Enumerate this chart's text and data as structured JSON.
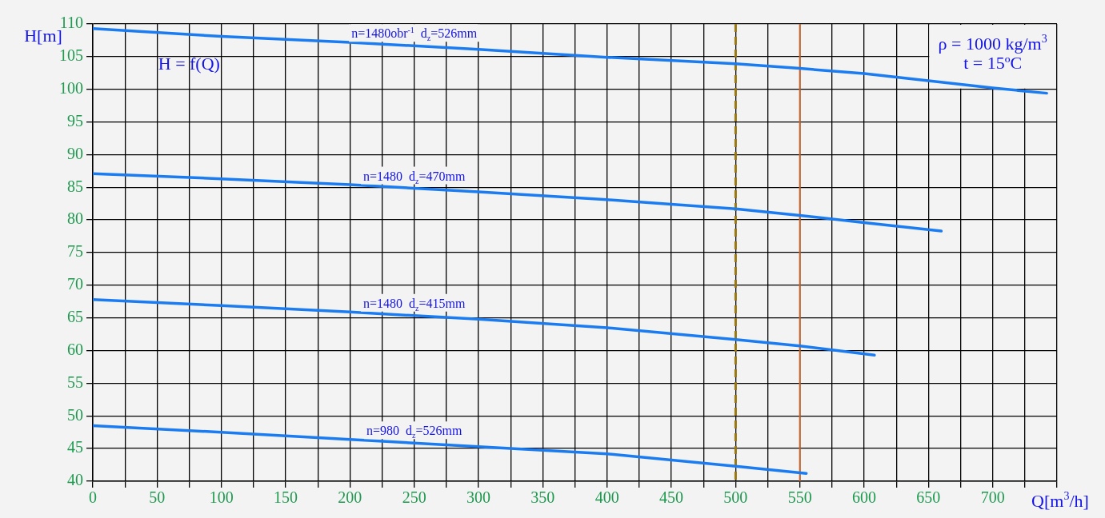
{
  "chart_data": {
    "type": "line",
    "xlabel": "Q[m$^{3}$/h]",
    "ylabel": "H[m]",
    "annotations": [
      "H = f(Q)",
      "ρ = 1000 kg/m$^{3}$",
      "t = 15ºC"
    ],
    "xlim": [
      0,
      750
    ],
    "ylim": [
      40,
      110
    ],
    "xticks": [
      0,
      {
        "value": 25,
        "label": null
      },
      50,
      {
        "value": 75,
        "label": null
      },
      100,
      {
        "value": 125,
        "label": null
      },
      150,
      {
        "value": 175,
        "label": null
      },
      200,
      {
        "value": 225,
        "label": null
      },
      250,
      {
        "value": 275,
        "label": null
      },
      300,
      {
        "value": 325,
        "label": null
      },
      350,
      {
        "value": 375,
        "label": null
      },
      400,
      {
        "value": 425,
        "label": null
      },
      450,
      {
        "value": 475,
        "label": null
      },
      500,
      {
        "value": 525,
        "label": null
      },
      550,
      {
        "value": 575,
        "label": null
      },
      600,
      {
        "value": 625,
        "label": null
      },
      650,
      {
        "value": 675,
        "label": null
      },
      700,
      {
        "value": 725,
        "label": null
      },
      {
        "value": 750,
        "label": null
      }
    ],
    "yticks": [
      40,
      45,
      50,
      55,
      60,
      65,
      70,
      75,
      80,
      85,
      90,
      95,
      100,
      105,
      110
    ],
    "grid": true,
    "legend": false,
    "marker": "none",
    "line_style": "solid",
    "series": [
      {
        "name": "n=1480obr$^{-1}$  d$_{z}$=526mm",
        "color": "#1a7cf0",
        "x": [
          0,
          100,
          200,
          300,
          400,
          500,
          550,
          600,
          650,
          700,
          742
        ],
        "values": [
          109.3,
          108.1,
          107.2,
          106.1,
          104.9,
          103.9,
          103.2,
          102.4,
          101.3,
          100.2,
          99.4
        ]
      },
      {
        "name": "n=1480  d$_{z}$=470mm",
        "color": "#1a7cf0",
        "x": [
          0,
          100,
          200,
          300,
          400,
          500,
          550,
          600,
          660
        ],
        "values": [
          87.1,
          86.3,
          85.4,
          84.3,
          83.1,
          81.7,
          80.7,
          79.6,
          78.3
        ]
      },
      {
        "name": "n=1480  d$_{z}$=415mm",
        "color": "#1a7cf0",
        "x": [
          0,
          100,
          200,
          300,
          400,
          500,
          550,
          608
        ],
        "values": [
          67.8,
          66.9,
          65.9,
          64.8,
          63.5,
          61.7,
          60.7,
          59.3
        ]
      },
      {
        "name": "n=980  d$_{z}$=526mm",
        "color": "#1a7cf0",
        "x": [
          0,
          100,
          200,
          300,
          400,
          500,
          555
        ],
        "values": [
          48.5,
          47.5,
          46.4,
          45.3,
          44.2,
          42.3,
          41.2
        ]
      }
    ],
    "ref_lines": [
      {
        "axis": "x",
        "value": 500,
        "color": "#9a7a10",
        "line_style": "dashed"
      },
      {
        "axis": "x",
        "value": 550,
        "color": "#c8642a",
        "line_style": "solid"
      }
    ]
  }
}
